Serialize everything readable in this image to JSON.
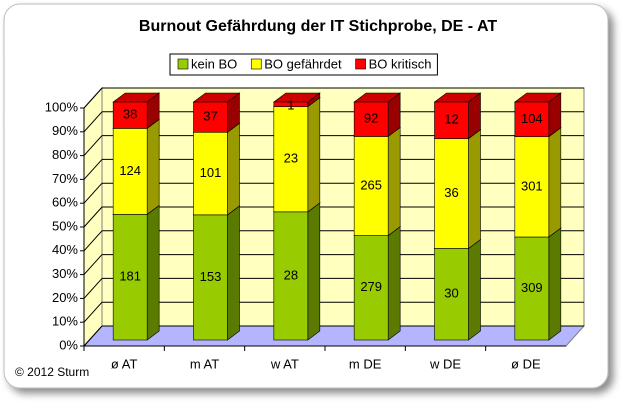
{
  "chart_data": {
    "type": "bar",
    "stacking": "percent",
    "title": "Burnout Gefährdung der IT Stichprobe, DE - AT",
    "categories": [
      "ø AT",
      "m AT",
      "w AT",
      "m DE",
      "w DE",
      "ø DE"
    ],
    "series": [
      {
        "name": "kein BO",
        "color": "#99cc00",
        "values": [
          181,
          153,
          28,
          279,
          30,
          309
        ]
      },
      {
        "name": "BO gefährdet",
        "color": "#ffff00",
        "values": [
          124,
          101,
          23,
          265,
          36,
          301
        ]
      },
      {
        "name": "BO kritisch",
        "color": "#ff0000",
        "values": [
          38,
          37,
          1,
          92,
          12,
          104
        ]
      }
    ],
    "ylim": [
      0,
      100
    ],
    "yticks": [
      {
        "value": 0,
        "label": "0%"
      },
      {
        "value": 10,
        "label": "10%"
      },
      {
        "value": 20,
        "label": "20%"
      },
      {
        "value": 30,
        "label": "30%"
      },
      {
        "value": 40,
        "label": "40%"
      },
      {
        "value": 50,
        "label": "50%"
      },
      {
        "value": 60,
        "label": "60%"
      },
      {
        "value": 70,
        "label": "70%"
      },
      {
        "value": 80,
        "label": "80%"
      },
      {
        "value": 90,
        "label": "90%"
      },
      {
        "value": 100,
        "label": "100%"
      }
    ],
    "grid": true,
    "legend": "top",
    "footnote": "© 2012 Sturm"
  }
}
